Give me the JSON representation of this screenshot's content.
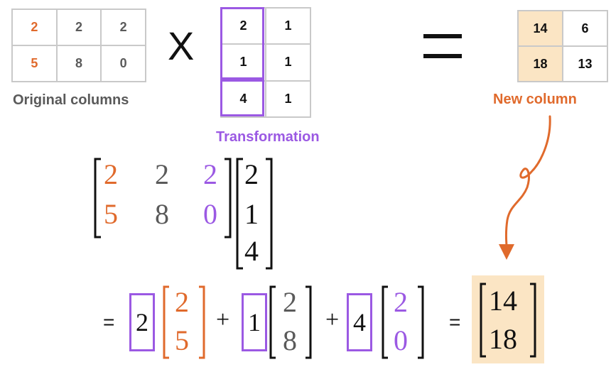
{
  "original": {
    "rows": [
      [
        "2",
        "2",
        "2"
      ],
      [
        "5",
        "8",
        "0"
      ]
    ],
    "caption": "Original columns"
  },
  "times_symbol": "X",
  "transformation": {
    "rows": [
      [
        "2",
        "1"
      ],
      [
        "1",
        "1"
      ],
      [
        "4",
        "1"
      ]
    ],
    "caption": "Transformation"
  },
  "equals_symbol": "=",
  "result": {
    "rows": [
      [
        "14",
        "6"
      ],
      [
        "18",
        "13"
      ]
    ],
    "caption": "New column"
  },
  "equation": {
    "matrix_rows": [
      [
        "2",
        "2",
        "2"
      ],
      [
        "5",
        "8",
        "0"
      ]
    ],
    "vector": [
      "2",
      "1",
      "4"
    ],
    "line2": {
      "equals": "=",
      "terms": [
        {
          "coef": "2",
          "col": [
            "2",
            "5"
          ],
          "plus": ""
        },
        {
          "coef": "1",
          "col": [
            "2",
            "8"
          ],
          "plus": "+"
        },
        {
          "coef": "4",
          "col": [
            "2",
            "0"
          ],
          "plus": "+"
        }
      ],
      "equals2": "=",
      "result": [
        "14",
        "18"
      ]
    }
  },
  "colors": {
    "orange": "#e06a2c",
    "purple": "#9b59e3",
    "grey": "#5a5a5a",
    "highlight": "#fbe5c4"
  }
}
